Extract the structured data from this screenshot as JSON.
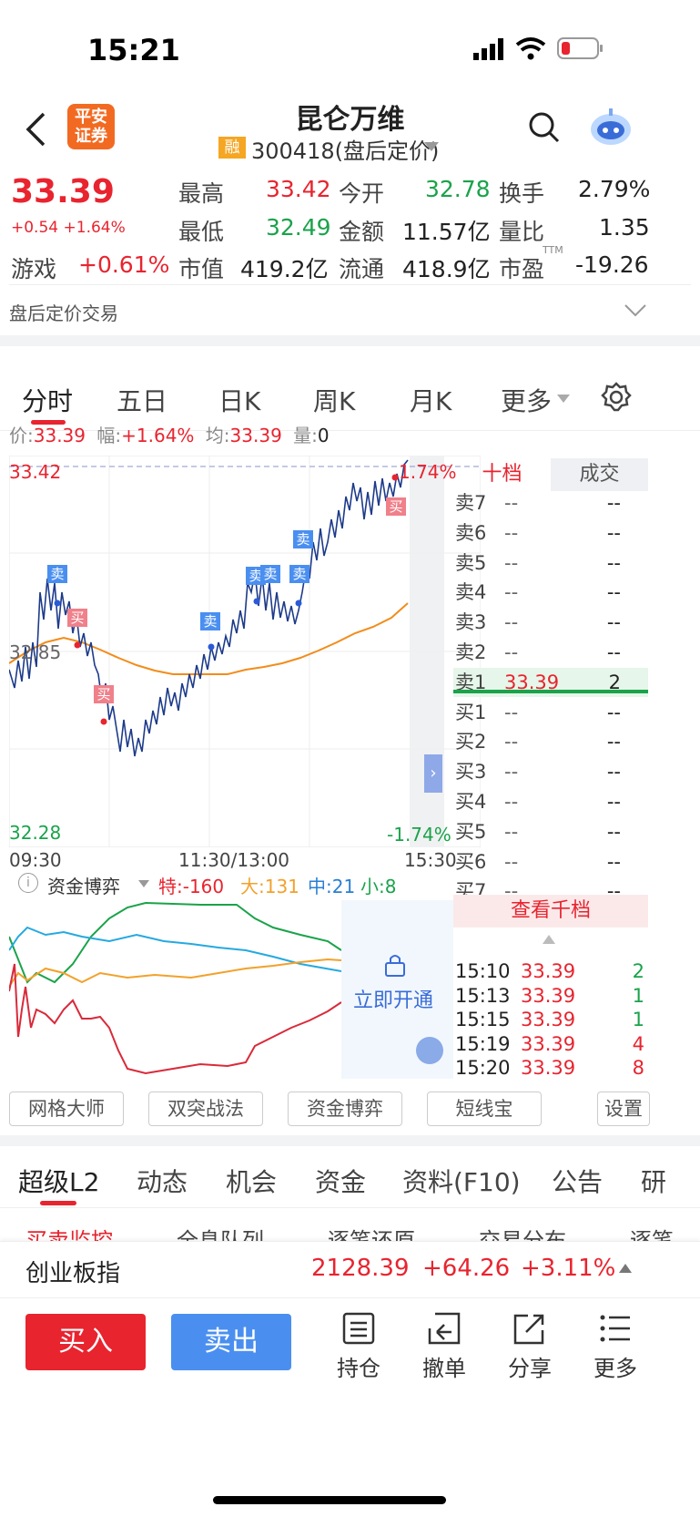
{
  "status_bar": {
    "time": "15:21"
  },
  "header": {
    "title": "昆仑万维",
    "rong": "融",
    "code": "300418(盘后定价)",
    "logo_line1": "平安",
    "logo_line2": "证券"
  },
  "quote": {
    "price": "33.39",
    "change": "+0.54",
    "change_pct": "+1.64%",
    "sector": "游戏",
    "sector_pct": "+0.61%",
    "high_l": "最高",
    "high": "33.42",
    "open_l": "今开",
    "open": "32.78",
    "turn_l": "换手",
    "turn": "2.79%",
    "low_l": "最低",
    "low": "32.49",
    "amt_l": "金额",
    "amt": "11.57亿",
    "vr_l": "量比",
    "vr": "1.35",
    "mcap_l": "市值",
    "mcap": "419.2亿",
    "float_l": "流通",
    "float": "418.9亿",
    "pe_l": "市盈",
    "pe_sup": "TTM",
    "pe": "-19.26"
  },
  "after_hours": "盘后定价交易",
  "tabs": [
    "分时",
    "五日",
    "日K",
    "周K",
    "月K",
    "更多"
  ],
  "info_line": {
    "price_l": "价:",
    "price": "33.39",
    "amp_l": "幅:",
    "amp": "+1.64%",
    "avg_l": "均:",
    "avg": "33.39",
    "vol_l": "量:",
    "vol": "0"
  },
  "chart": {
    "y_top": "33.42",
    "y_mid": "32.85",
    "y_bot": "32.28",
    "pct_top": "1.74%",
    "pct_bot": "-1.74%",
    "x_start": "09:30",
    "x_mid": "11:30/13:00",
    "x_end": "15:30",
    "markers": [
      {
        "t": "卖",
        "k": "s"
      },
      {
        "t": "买",
        "k": "b"
      },
      {
        "t": "买",
        "k": "b"
      },
      {
        "t": "卖",
        "k": "s"
      },
      {
        "t": "卖",
        "k": "s"
      },
      {
        "t": "卖",
        "k": "s"
      },
      {
        "t": "卖",
        "k": "s"
      },
      {
        "t": "卖",
        "k": "s"
      },
      {
        "t": "买",
        "k": "b"
      }
    ]
  },
  "orderbook": {
    "tab1": "十档",
    "tab2": "成交",
    "asks": [
      {
        "l": "卖7",
        "p": "--",
        "v": "--"
      },
      {
        "l": "卖6",
        "p": "--",
        "v": "--"
      },
      {
        "l": "卖5",
        "p": "--",
        "v": "--"
      },
      {
        "l": "卖4",
        "p": "--",
        "v": "--"
      },
      {
        "l": "卖3",
        "p": "--",
        "v": "--"
      },
      {
        "l": "卖2",
        "p": "--",
        "v": "--"
      },
      {
        "l": "卖1",
        "p": "33.39",
        "v": "2"
      }
    ],
    "bids": [
      {
        "l": "买1",
        "p": "--",
        "v": "--"
      },
      {
        "l": "买2",
        "p": "--",
        "v": "--"
      },
      {
        "l": "买3",
        "p": "--",
        "v": "--"
      },
      {
        "l": "买4",
        "p": "--",
        "v": "--"
      },
      {
        "l": "买5",
        "p": "--",
        "v": "--"
      },
      {
        "l": "买6",
        "p": "--",
        "v": "--"
      },
      {
        "l": "买7",
        "p": "--",
        "v": "--"
      }
    ],
    "view_all": "查看千档",
    "trades": [
      {
        "t": "15:10",
        "p": "33.39",
        "v": "2"
      },
      {
        "t": "15:13",
        "p": "33.39",
        "v": "1"
      },
      {
        "t": "15:15",
        "p": "33.39",
        "v": "1"
      },
      {
        "t": "15:19",
        "p": "33.39",
        "v": "4"
      },
      {
        "t": "15:20",
        "p": "33.39",
        "v": "8"
      }
    ]
  },
  "fund": {
    "title": "资金博弈",
    "te": "特:-160",
    "da": "大:131",
    "zhong": "中:21",
    "xiao": "小:8",
    "unlock": "立即开通"
  },
  "tools": [
    "网格大师",
    "双突战法",
    "资金博弈",
    "短线宝",
    "设置"
  ],
  "f10_tabs": [
    "超级L2",
    "动态",
    "机会",
    "资金",
    "资料(F10)",
    "公告",
    "研"
  ],
  "sub_tabs": [
    "买卖监控",
    "全息队列",
    "逐笔还原",
    "交易分布",
    "逐笔"
  ],
  "index_bar": {
    "name": "创业板指",
    "value": "2128.39",
    "change": "+64.26",
    "pct": "+3.11%"
  },
  "bottom": {
    "buy": "买入",
    "sell": "卖出",
    "hold": "持仓",
    "cancel": "撤单",
    "share": "分享",
    "more": "更多"
  },
  "colors": {
    "red": "#e8242f",
    "green": "#1aa34a",
    "blue": "#4a8ff0"
  }
}
